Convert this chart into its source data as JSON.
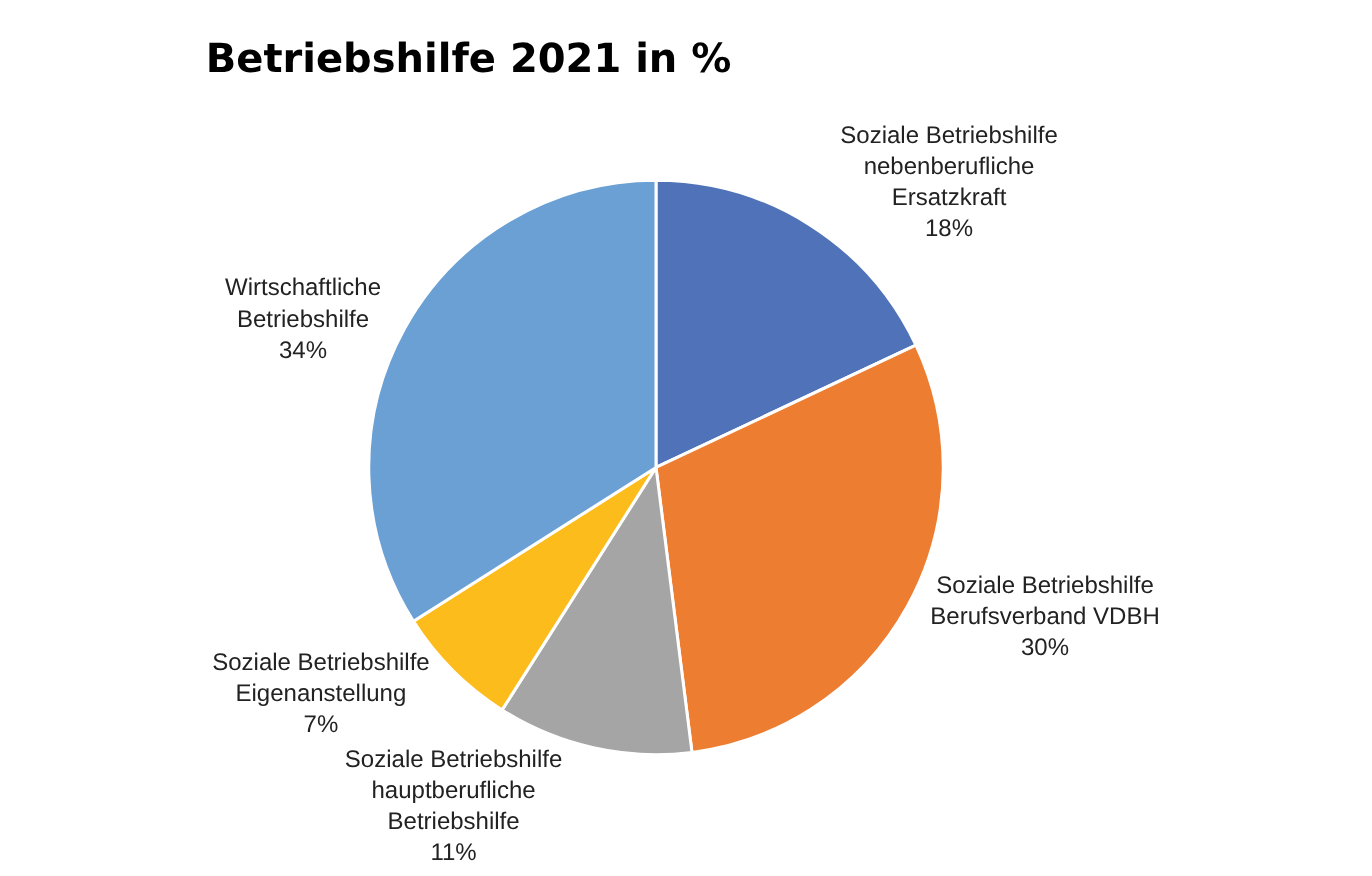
{
  "chart_data": {
    "type": "pie",
    "title": "Betriebshilfe 2021 in %",
    "categories": [
      "Soziale Betriebshilfe nebenberufliche Ersatzkraft",
      "Soziale Betriebshilfe Berufsverband VDBH",
      "Soziale Betriebshilfe hauptberufliche Betriebshilfe",
      "Soziale Betriebshilfe Eigenanstellung",
      "Wirtschaftliche Betriebshilfe"
    ],
    "values": [
      18,
      30,
      11,
      7,
      34
    ],
    "value_labels": [
      "18%",
      "30%",
      "11%",
      "7%",
      "34%"
    ],
    "colors": [
      "#4f72b8",
      "#ed7d31",
      "#a5a5a5",
      "#fbbc1c",
      "#6aa0d4"
    ],
    "legend": false
  }
}
